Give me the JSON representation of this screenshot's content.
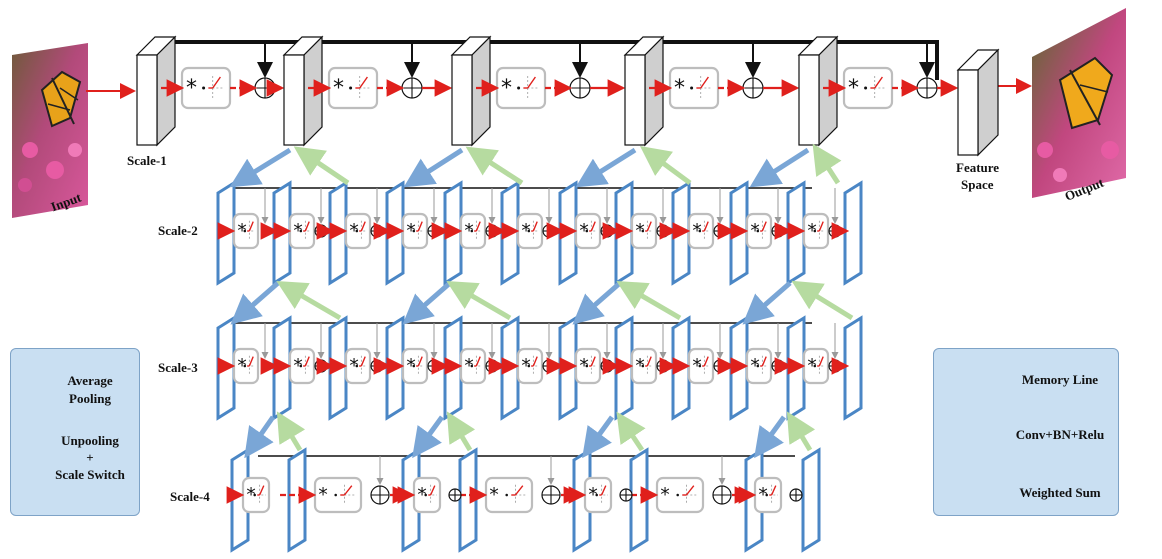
{
  "labels": {
    "input": "Input",
    "output": "Output",
    "scale1": "Scale-1",
    "scale2": "Scale-2",
    "scale3": "Scale-3",
    "scale4": "Scale-4",
    "feature_space_1": "Feature",
    "feature_space_2": "Space"
  },
  "legend_left": {
    "average_pooling_1": "Average",
    "average_pooling_2": "Pooling",
    "unpooling_1": "Unpooling",
    "unpooling_2": "+",
    "unpooling_3": "Scale Switch"
  },
  "legend_right": {
    "memory_line": "Memory Line",
    "conv_bn_relu": "Conv+BN+Relu",
    "weighted_sum": "Weighted Sum"
  },
  "colors": {
    "red_arrow": "#e0201c",
    "memory_line": "#111111",
    "blue_plane": "#4a86c5",
    "pool_arrow": "#7aa6d6",
    "unpool_arrow": "#b6dba0",
    "legend_fill": "#c9dff2"
  }
}
